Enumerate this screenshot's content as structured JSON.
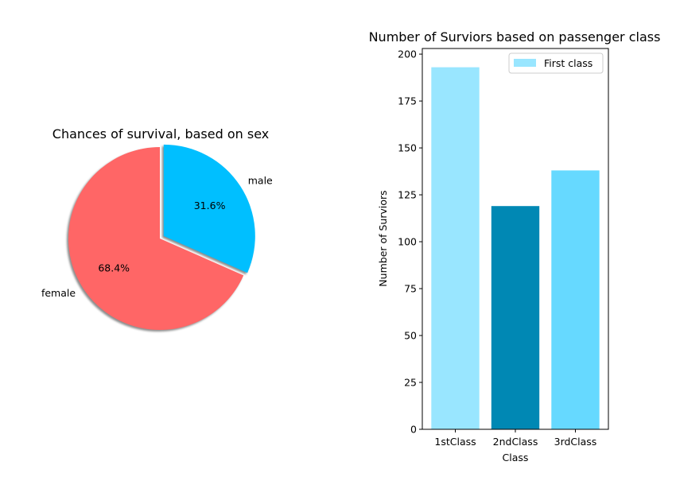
{
  "chart_data": [
    {
      "type": "pie",
      "title": "Chances of survival, based on sex",
      "labels": [
        "female",
        "male"
      ],
      "percent_labels": [
        "68.4%",
        "31.6%"
      ],
      "values": [
        68.4,
        31.6
      ],
      "colors": [
        "#ff6666",
        "#00bfff"
      ],
      "explode": [
        0,
        0.05
      ],
      "shadow": true,
      "start_angle": 90
    },
    {
      "type": "bar",
      "title": "Number of Surviors based on passenger class",
      "xlabel": "Class",
      "ylabel": "Number of Surviors",
      "categories": [
        "1stClass",
        "2ndClass",
        "3rdClass"
      ],
      "values": [
        193,
        119,
        138
      ],
      "colors": [
        "#99e6ff",
        "#0088b4",
        "#66d9ff"
      ],
      "ylim": [
        0,
        203
      ],
      "yticks": [
        0,
        25,
        50,
        75,
        100,
        125,
        150,
        175,
        200
      ],
      "legend": {
        "entries": [
          "First class"
        ],
        "color": "#99e6ff",
        "placement": "upper right"
      },
      "grid": false
    }
  ]
}
